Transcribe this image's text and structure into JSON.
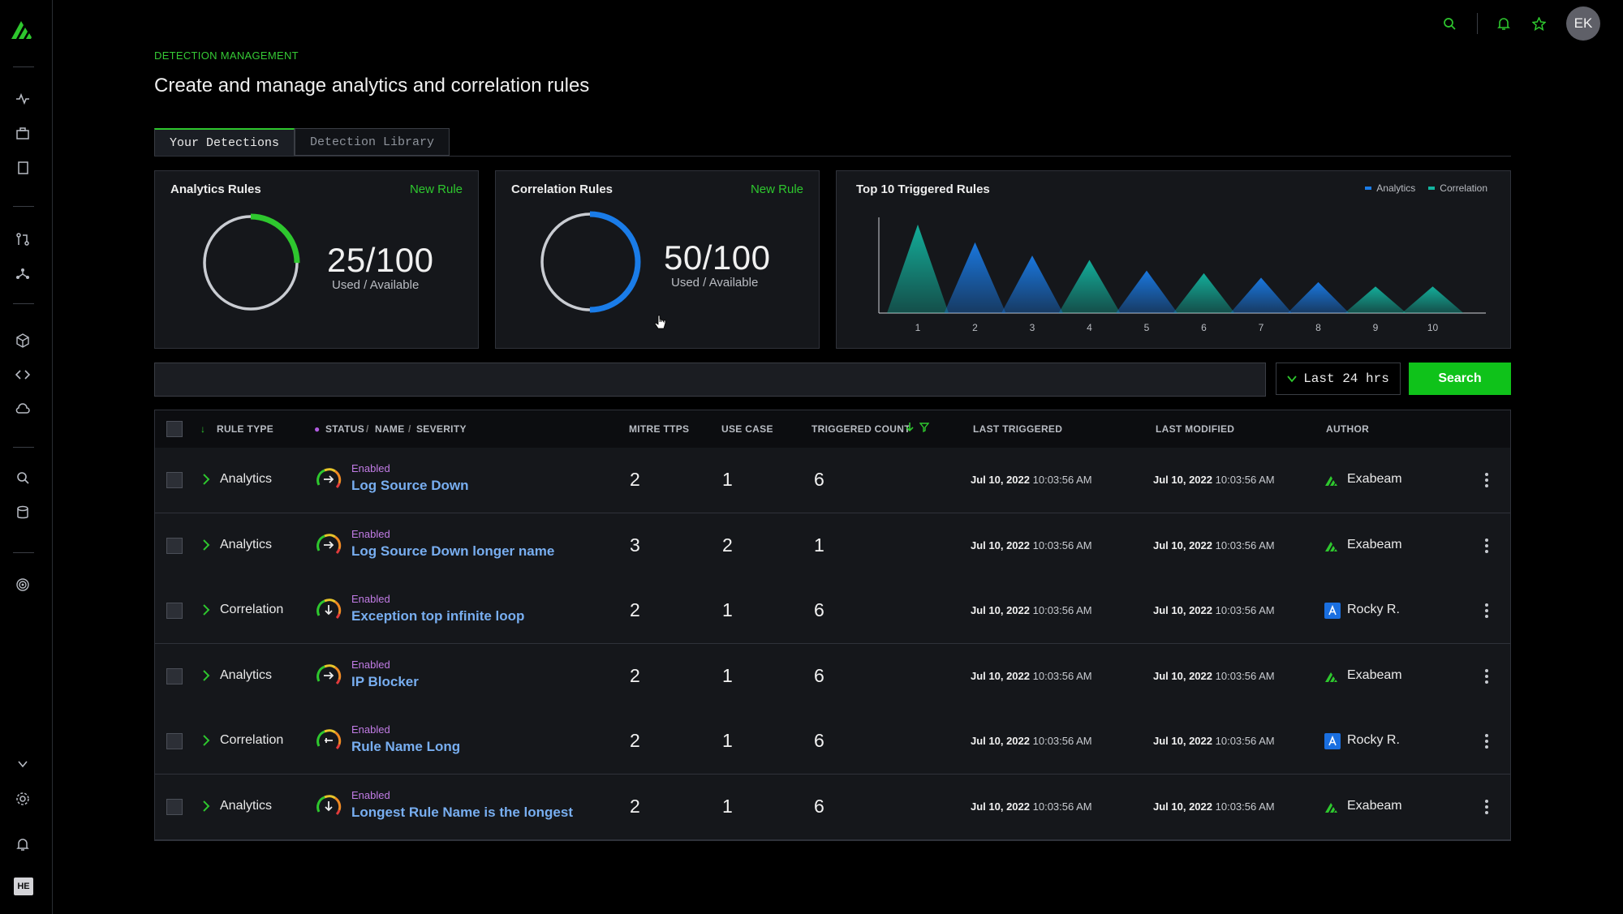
{
  "header": {
    "eyebrow": "DETECTION MANAGEMENT",
    "title": "Create and manage analytics and correlation rules",
    "avatar_initials": "EK"
  },
  "sidebar": {
    "workspace_badge": "HE"
  },
  "tabs": [
    {
      "label": "Your Detections",
      "active": true
    },
    {
      "label": "Detection Library",
      "active": false
    }
  ],
  "cards": {
    "analytics": {
      "title": "Analytics Rules",
      "link": "New Rule",
      "count": "25/100",
      "sub": "Used / Available",
      "fraction": 0.25,
      "color": "#2ec72e"
    },
    "correlation": {
      "title": "Correlation Rules",
      "link": "New Rule",
      "count": "50/100",
      "sub": "Used / Available",
      "fraction": 0.5,
      "color": "#1a7ce8"
    },
    "top10": {
      "title": "Top 10 Triggered Rules"
    }
  },
  "chart_data": {
    "type": "area",
    "title": "Top 10 Triggered Rules",
    "categories": [
      "1",
      "2",
      "3",
      "4",
      "5",
      "6",
      "7",
      "8",
      "9",
      "10"
    ],
    "legend": [
      "Analytics",
      "Correlation"
    ],
    "legend_placement": "top-right",
    "colors": {
      "Analytics": "#1a7ce8",
      "Correlation": "#13b5a0"
    },
    "series": [
      {
        "name": "Correlation",
        "values": [
          10,
          0,
          0,
          6,
          0,
          4.5,
          0,
          0,
          3,
          3
        ]
      },
      {
        "name": "Analytics",
        "values": [
          0,
          8,
          6.5,
          0,
          4.8,
          0,
          4,
          3.5,
          0,
          0
        ]
      }
    ],
    "ylim": [
      0,
      11
    ],
    "grid": false
  },
  "search": {
    "placeholder": "",
    "time_range": "Last 24 hrs",
    "button": "Search"
  },
  "table": {
    "columns": {
      "rule_type": "RULE TYPE",
      "status": "STATUS",
      "name": "NAME",
      "severity": "SEVERITY",
      "mitre": "MITRE TTPS",
      "use_case": "USE CASE",
      "triggered": "TRIGGERED COUNT",
      "last_triggered": "LAST TRIGGERED",
      "last_modified": "LAST MODIFIED",
      "author": "AUTHOR"
    },
    "rows": [
      {
        "type": "Analytics",
        "status": "Enabled",
        "name": "Log Source Down",
        "mitre": "2",
        "use_case": "1",
        "triggered": "6",
        "lt_date": "Jul 10, 2022",
        "lt_time": "10:03:56 AM",
        "lm_date": "Jul 10, 2022",
        "lm_time": "10:03:56 AM",
        "author": "Exabeam",
        "author_kind": "exabeam",
        "severity_dir": "right"
      },
      {
        "type": "Analytics",
        "status": "Enabled",
        "name": "Log Source Down longer name",
        "mitre": "3",
        "use_case": "2",
        "triggered": "1",
        "lt_date": "Jul 10, 2022",
        "lt_time": "10:03:56 AM",
        "lm_date": "Jul 10, 2022",
        "lm_time": "10:03:56 AM",
        "author": "Exabeam",
        "author_kind": "exabeam",
        "severity_dir": "right"
      },
      {
        "type": "Correlation",
        "status": "Enabled",
        "name": "Exception top infinite loop",
        "mitre": "2",
        "use_case": "1",
        "triggered": "6",
        "lt_date": "Jul 10, 2022",
        "lt_time": "10:03:56 AM",
        "lm_date": "Jul 10, 2022",
        "lm_time": "10:03:56 AM",
        "author": "Rocky R.",
        "author_kind": "user",
        "severity_dir": "down"
      },
      {
        "type": "Analytics",
        "status": "Enabled",
        "name": "IP Blocker",
        "mitre": "2",
        "use_case": "1",
        "triggered": "6",
        "lt_date": "Jul 10, 2022",
        "lt_time": "10:03:56 AM",
        "lm_date": "Jul 10, 2022",
        "lm_time": "10:03:56 AM",
        "author": "Exabeam",
        "author_kind": "exabeam",
        "severity_dir": "right"
      },
      {
        "type": "Correlation",
        "status": "Enabled",
        "name": "Rule Name Long",
        "mitre": "2",
        "use_case": "1",
        "triggered": "6",
        "lt_date": "Jul 10, 2022",
        "lt_time": "10:03:56 AM",
        "lm_date": "Jul 10, 2022",
        "lm_time": "10:03:56 AM",
        "author": "Rocky R.",
        "author_kind": "user",
        "severity_dir": "left"
      },
      {
        "type": "Analytics",
        "status": "Enabled",
        "name": "Longest Rule Name is the longest",
        "mitre": "2",
        "use_case": "1",
        "triggered": "6",
        "lt_date": "Jul 10, 2022",
        "lt_time": "10:03:56 AM",
        "lm_date": "Jul 10, 2022",
        "lm_time": "10:03:56 AM",
        "author": "Exabeam",
        "author_kind": "exabeam",
        "severity_dir": "down"
      }
    ]
  }
}
